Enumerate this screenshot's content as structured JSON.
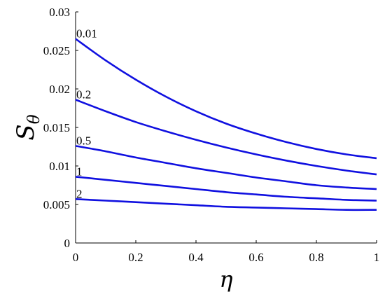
{
  "chart_data": {
    "type": "line",
    "title": "",
    "xlabel": "η",
    "ylabel": "S",
    "ylabel_subscript": "θ",
    "xlim": [
      0,
      1
    ],
    "ylim": [
      0,
      0.03
    ],
    "xticks": [
      "0",
      "0.2",
      "0.4",
      "0.6",
      "0.8",
      "1"
    ],
    "yticks": [
      "0",
      "0.005",
      "0.01",
      "0.015",
      "0.02",
      "0.025",
      "0.03"
    ],
    "grid": false,
    "line_color": "#1010E0",
    "x": [
      0,
      0.1,
      0.2,
      0.3,
      0.4,
      0.5,
      0.6,
      0.7,
      0.8,
      0.9,
      1.0
    ],
    "series": [
      {
        "label": "0.01",
        "values": [
          0.0265,
          0.0237,
          0.0212,
          0.019,
          0.0171,
          0.0155,
          0.0142,
          0.0131,
          0.0122,
          0.0115,
          0.011
        ]
      },
      {
        "label": "0.2",
        "values": [
          0.0186,
          0.0171,
          0.0157,
          0.0145,
          0.0134,
          0.0124,
          0.0115,
          0.0107,
          0.01,
          0.0094,
          0.0089
        ]
      },
      {
        "label": "0.5",
        "values": [
          0.0126,
          0.0119,
          0.0111,
          0.0104,
          0.0097,
          0.0091,
          0.0085,
          0.008,
          0.0075,
          0.0072,
          0.007
        ]
      },
      {
        "label": "1",
        "values": [
          0.0086,
          0.0082,
          0.0078,
          0.0074,
          0.007,
          0.0066,
          0.0063,
          0.006,
          0.0058,
          0.0056,
          0.0055
        ]
      },
      {
        "label": "2",
        "values": [
          0.0057,
          0.0055,
          0.0053,
          0.0051,
          0.0049,
          0.0047,
          0.0046,
          0.0045,
          0.0044,
          0.0043,
          0.0043
        ]
      }
    ]
  }
}
